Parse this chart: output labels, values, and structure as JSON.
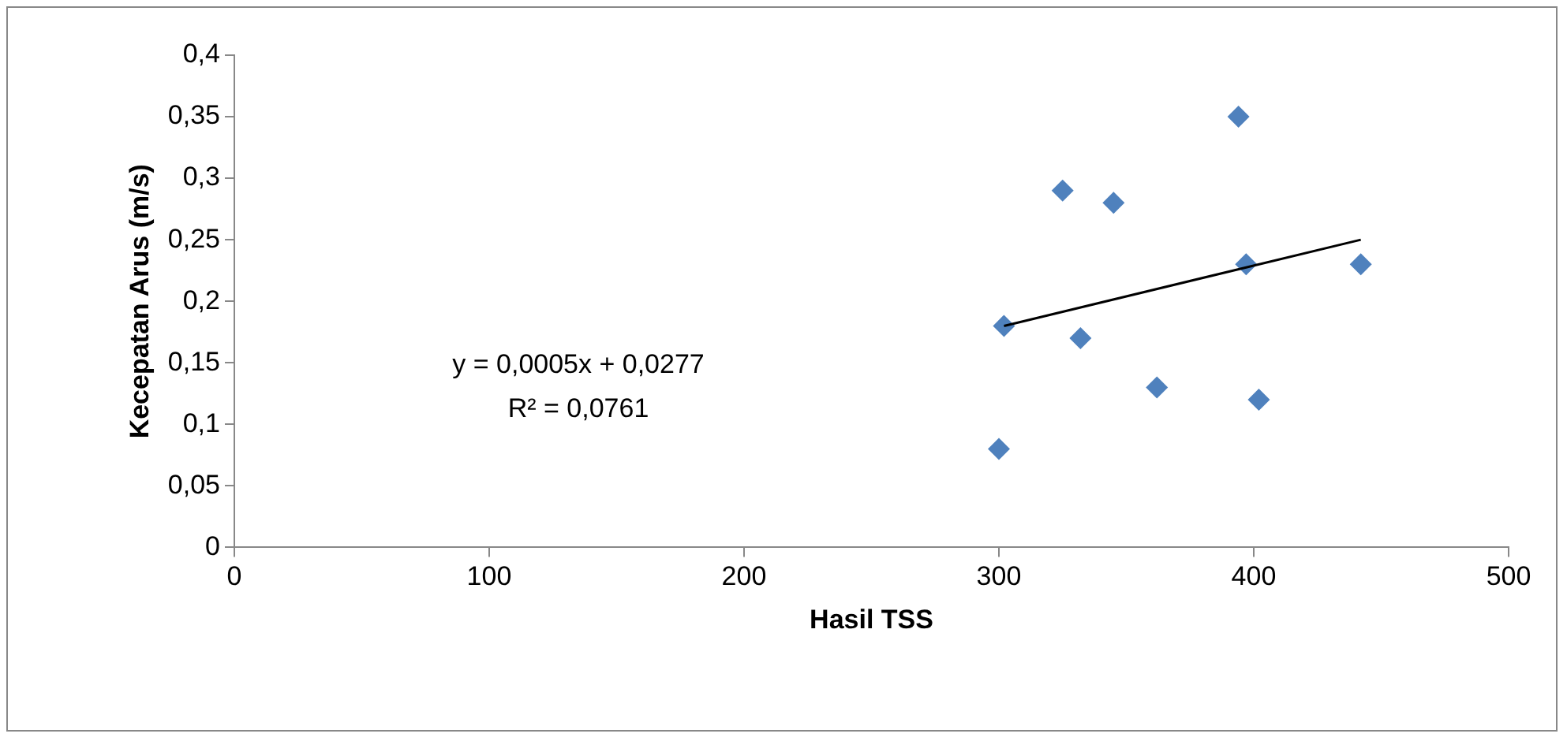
{
  "chart_data": {
    "type": "scatter",
    "xlabel": "Hasil TSS",
    "ylabel": "Kecepatan Arus (m/s)",
    "xlim": [
      0,
      500
    ],
    "xticks": [
      0,
      100,
      200,
      300,
      400,
      500
    ],
    "ylim": [
      0,
      0.4
    ],
    "yticks": [
      0,
      {
        "value": 0.05,
        "label": "0,05"
      },
      {
        "value": 0.1,
        "label": "0,1"
      },
      {
        "value": 0.15,
        "label": "0,15"
      },
      {
        "value": 0.2,
        "label": "0,2"
      },
      {
        "value": 0.25,
        "label": "0,25"
      },
      {
        "value": 0.3,
        "label": "0,3"
      },
      {
        "value": 0.35,
        "label": "0,35"
      },
      {
        "value": 0.4,
        "label": "0,4"
      }
    ],
    "grid": false,
    "legend": false,
    "series": [
      {
        "marker": "diamond",
        "color": "#4f81bd",
        "x": [
          300,
          302,
          325,
          332,
          345,
          362,
          394,
          397,
          402,
          442
        ],
        "values": [
          0.08,
          0.18,
          0.29,
          0.17,
          0.28,
          0.13,
          0.35,
          0.23,
          0.12,
          0.23
        ]
      },
      {
        "type": "line",
        "marker": "none",
        "color": "#000000",
        "x": [
          302,
          442
        ],
        "values": [
          0.18,
          0.25
        ]
      }
    ],
    "annotations": [
      "y = 0,0005x + 0,0277",
      "R² = 0,0761"
    ]
  }
}
